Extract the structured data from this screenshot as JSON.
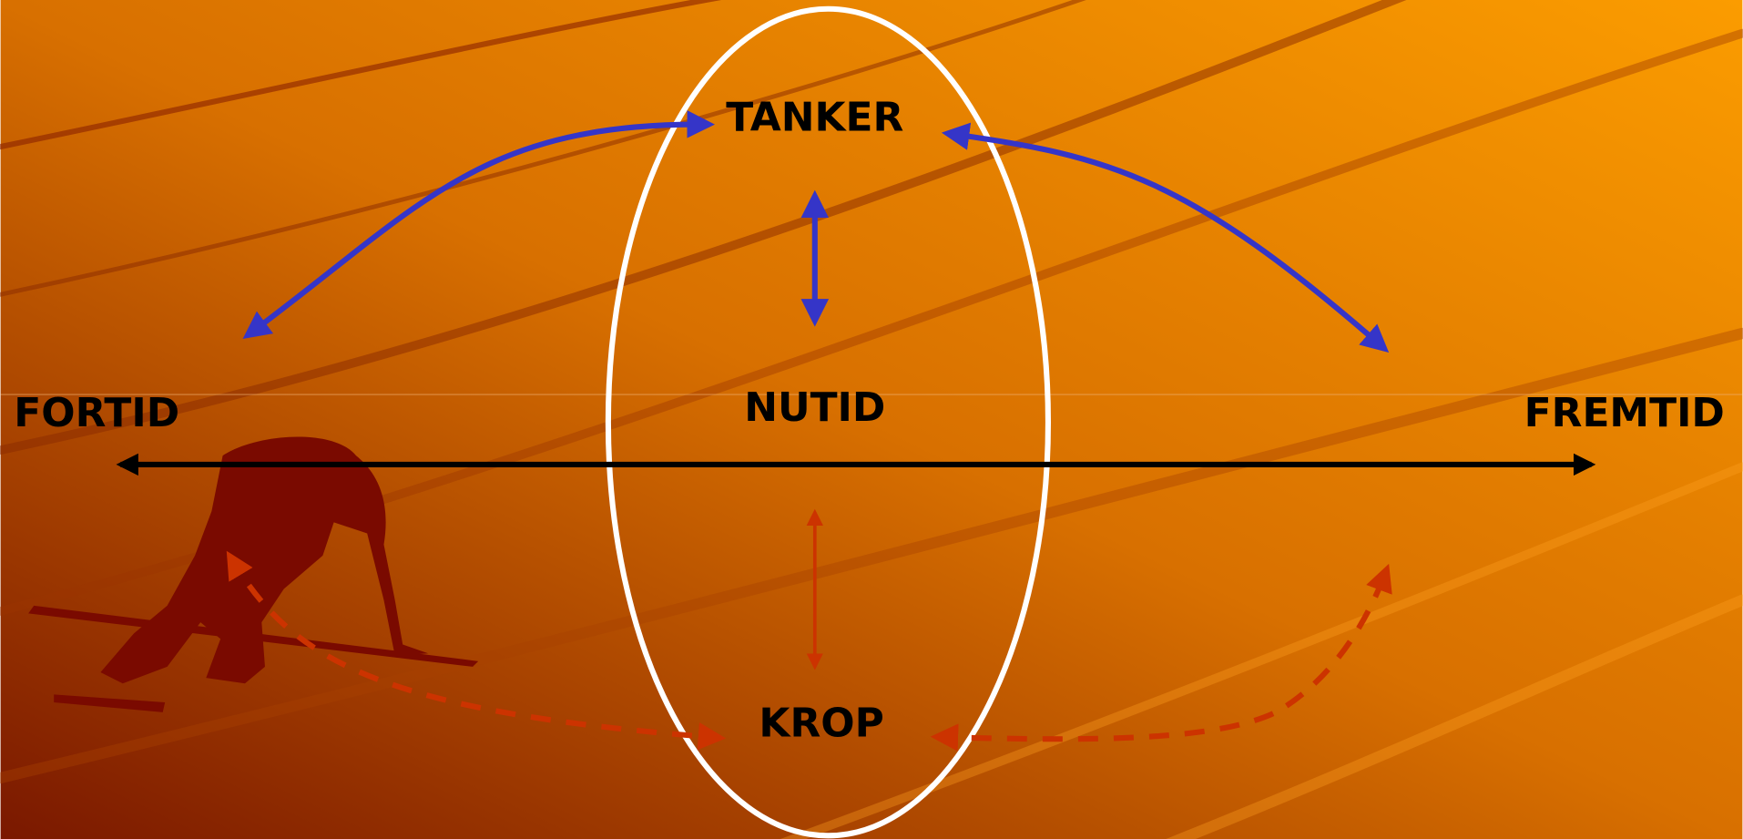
{
  "labels": {
    "top": "TANKER",
    "center": "NUTID",
    "bottom": "KROP",
    "left": "FORTID",
    "right": "FREMTID"
  }
}
